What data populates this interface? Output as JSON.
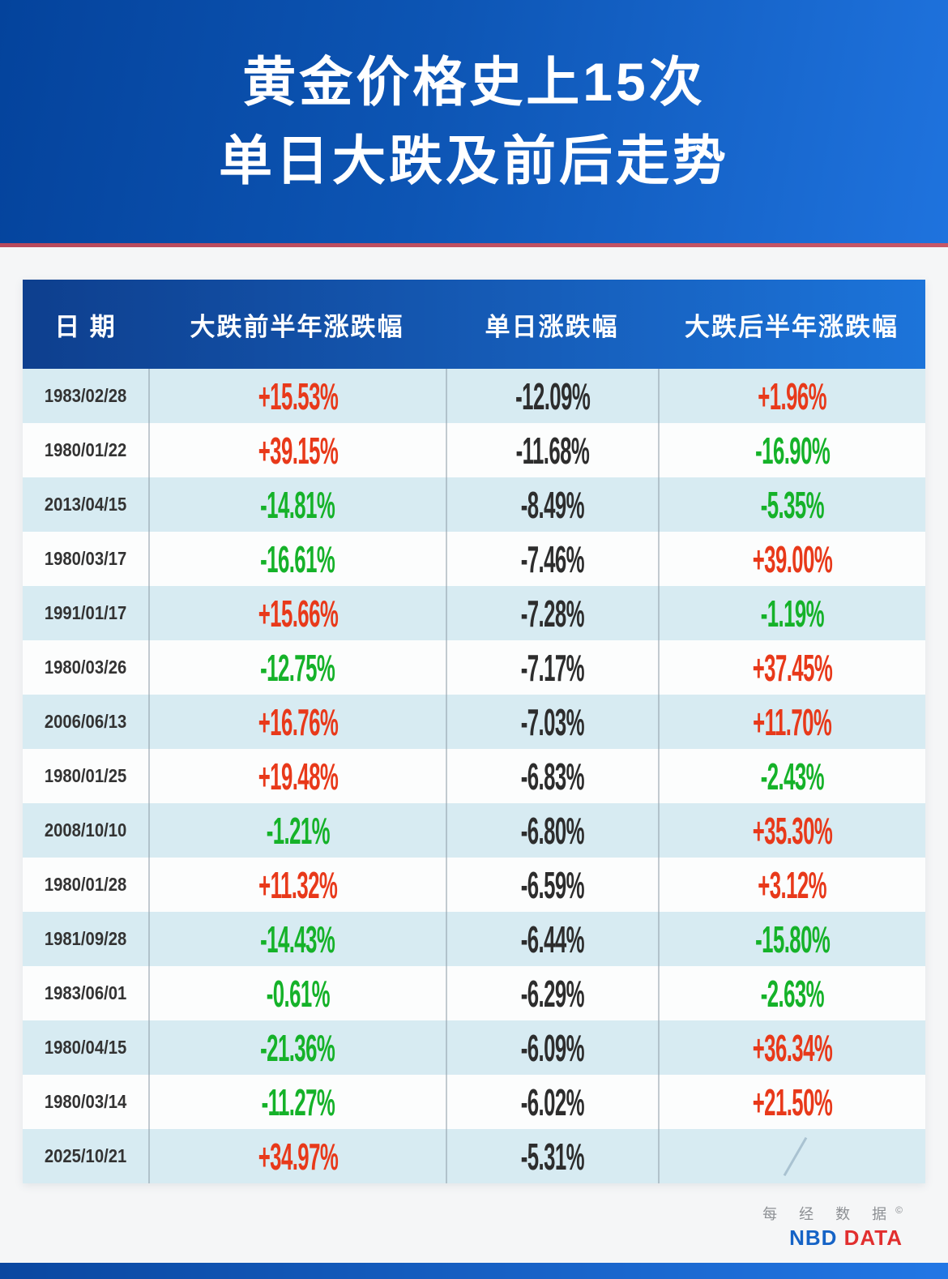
{
  "banner": {
    "title_line1": "黄金价格史上15次",
    "title_line2": "单日大跌及前后走势"
  },
  "table": {
    "headers": [
      "日 期",
      "大跌前半年涨跌幅",
      "单日涨跌幅",
      "大跌后半年涨跌幅"
    ],
    "rows": [
      {
        "date": "1983/02/28",
        "pre": "+15.53%",
        "pre_c": "up",
        "day": "-12.09%",
        "day_c": "flat",
        "post": "+1.96%",
        "post_c": "up"
      },
      {
        "date": "1980/01/22",
        "pre": "+39.15%",
        "pre_c": "up",
        "day": "-11.68%",
        "day_c": "flat",
        "post": "-16.90%",
        "post_c": "down"
      },
      {
        "date": "2013/04/15",
        "pre": "-14.81%",
        "pre_c": "down",
        "day": "-8.49%",
        "day_c": "flat",
        "post": "-5.35%",
        "post_c": "down"
      },
      {
        "date": "1980/03/17",
        "pre": "-16.61%",
        "pre_c": "down",
        "day": "-7.46%",
        "day_c": "flat",
        "post": "+39.00%",
        "post_c": "up"
      },
      {
        "date": "1991/01/17",
        "pre": "+15.66%",
        "pre_c": "up",
        "day": "-7.28%",
        "day_c": "flat",
        "post": "-1.19%",
        "post_c": "down"
      },
      {
        "date": "1980/03/26",
        "pre": "-12.75%",
        "pre_c": "down",
        "day": "-7.17%",
        "day_c": "flat",
        "post": "+37.45%",
        "post_c": "up"
      },
      {
        "date": "2006/06/13",
        "pre": "+16.76%",
        "pre_c": "up",
        "day": "-7.03%",
        "day_c": "flat",
        "post": "+11.70%",
        "post_c": "up"
      },
      {
        "date": "1980/01/25",
        "pre": "+19.48%",
        "pre_c": "up",
        "day": "-6.83%",
        "day_c": "flat",
        "post": "-2.43%",
        "post_c": "down"
      },
      {
        "date": "2008/10/10",
        "pre": "-1.21%",
        "pre_c": "down",
        "day": "-6.80%",
        "day_c": "flat",
        "post": "+35.30%",
        "post_c": "up"
      },
      {
        "date": "1980/01/28",
        "pre": "+11.32%",
        "pre_c": "up",
        "day": "-6.59%",
        "day_c": "flat",
        "post": "+3.12%",
        "post_c": "up"
      },
      {
        "date": "1981/09/28",
        "pre": "-14.43%",
        "pre_c": "down",
        "day": "-6.44%",
        "day_c": "flat",
        "post": "-15.80%",
        "post_c": "down"
      },
      {
        "date": "1983/06/01",
        "pre": "-0.61%",
        "pre_c": "down",
        "day": "-6.29%",
        "day_c": "flat",
        "post": "-2.63%",
        "post_c": "down"
      },
      {
        "date": "1980/04/15",
        "pre": "-21.36%",
        "pre_c": "down",
        "day": "-6.09%",
        "day_c": "flat",
        "post": "+36.34%",
        "post_c": "up"
      },
      {
        "date": "1980/03/14",
        "pre": "-11.27%",
        "pre_c": "down",
        "day": "-6.02%",
        "day_c": "flat",
        "post": "+21.50%",
        "post_c": "up"
      },
      {
        "date": "2025/10/21",
        "pre": "+34.97%",
        "pre_c": "up",
        "day": "-5.31%",
        "day_c": "flat",
        "post": "",
        "post_c": "flat"
      }
    ]
  },
  "footer": {
    "brand_cn": "每 经 数 据",
    "copyright_mark": "©",
    "brand_en_blue": "NBD",
    "brand_en_red": "DATA"
  },
  "colors": {
    "rise_red": "#e8391a",
    "fall_green": "#15b229",
    "neutral_dark": "#2d2d2d",
    "banner_left": "#04439c",
    "banner_right": "#1f73de",
    "header_left": "#0e3f8e",
    "header_right": "#1c74da",
    "row_tint": "#d7ebf2",
    "divider_red": "#c04f60"
  },
  "chart_data": {
    "type": "table",
    "title": "黄金价格史上15次单日大跌及前后走势",
    "columns": [
      "日期",
      "大跌前半年涨跌幅",
      "单日涨跌幅",
      "大跌后半年涨跌幅"
    ],
    "rows": [
      [
        "1983/02/28",
        "+15.53%",
        "-12.09%",
        "+1.96%"
      ],
      [
        "1980/01/22",
        "+39.15%",
        "-11.68%",
        "-16.90%"
      ],
      [
        "2013/04/15",
        "-14.81%",
        "-8.49%",
        "-5.35%"
      ],
      [
        "1980/03/17",
        "-16.61%",
        "-7.46%",
        "+39.00%"
      ],
      [
        "1991/01/17",
        "+15.66%",
        "-7.28%",
        "-1.19%"
      ],
      [
        "1980/03/26",
        "-12.75%",
        "-7.17%",
        "+37.45%"
      ],
      [
        "2006/06/13",
        "+16.76%",
        "-7.03%",
        "+11.70%"
      ],
      [
        "1980/01/25",
        "+19.48%",
        "-6.83%",
        "-2.43%"
      ],
      [
        "2008/10/10",
        "-1.21%",
        "-6.80%",
        "+35.30%"
      ],
      [
        "1980/01/28",
        "+11.32%",
        "-6.59%",
        "+3.12%"
      ],
      [
        "1981/09/28",
        "-14.43%",
        "-6.44%",
        "-15.80%"
      ],
      [
        "1983/06/01",
        "-0.61%",
        "-6.29%",
        "-2.63%"
      ],
      [
        "1980/04/15",
        "-21.36%",
        "-6.09%",
        "+36.34%"
      ],
      [
        "1980/03/14",
        "-11.27%",
        "-6.02%",
        "+21.50%"
      ],
      [
        "2025/10/21",
        "+34.97%",
        "-5.31%",
        null
      ]
    ],
    "notes": "红色=上涨, 绿色=下跌; 最后一行后半年数据缺失(斜线)"
  }
}
